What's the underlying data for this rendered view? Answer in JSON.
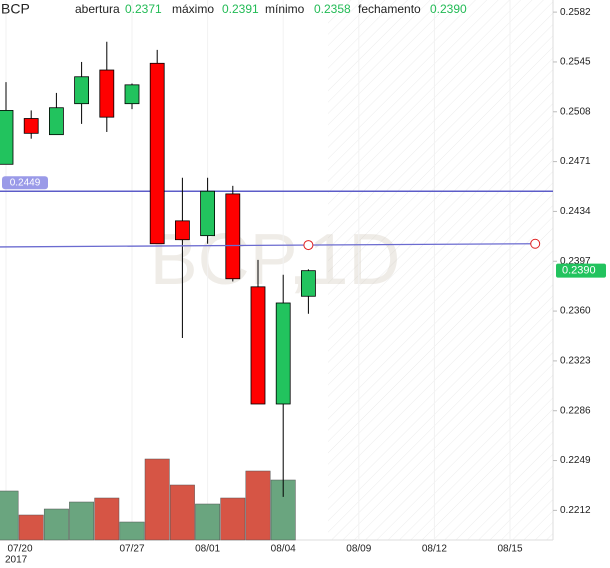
{
  "chart_data": {
    "type": "candlestick",
    "symbol": "BCP",
    "watermark": "BCP,1D",
    "header_fields": [
      {
        "name": "abertura",
        "text": "0.2371"
      },
      {
        "name": "máximo",
        "text": "0.2391"
      },
      {
        "name": "mínimo",
        "text": "0.2358"
      },
      {
        "name": "fechamento",
        "text": "0.2390"
      }
    ],
    "year_label": "2017",
    "categories": [
      "07/20",
      null,
      null,
      null,
      null,
      "07/27",
      null,
      null,
      "08/01",
      null,
      null,
      "08/04",
      null,
      null,
      "08/09",
      null,
      null,
      "08/12",
      null,
      null,
      "08/15",
      null
    ],
    "open": [
      0.2469,
      0.2503,
      0.2491,
      0.2514,
      0.2539,
      0.2514,
      0.2544,
      0.2427,
      0.2416,
      0.2447,
      0.2378,
      0.2291,
      0.2371,
      null,
      null,
      null,
      null,
      null,
      null,
      null,
      null,
      null
    ],
    "high": [
      0.253,
      0.2509,
      0.2522,
      0.2545,
      0.256,
      0.2529,
      0.2554,
      0.2459,
      0.2459,
      0.2453,
      0.2398,
      0.2387,
      0.2391,
      null,
      null,
      null,
      null,
      null,
      null,
      null,
      null,
      null
    ],
    "low": [
      0.2469,
      0.2488,
      0.2491,
      0.2499,
      0.2493,
      0.251,
      0.241,
      0.234,
      0.241,
      0.2382,
      0.2291,
      0.2222,
      0.2358,
      null,
      null,
      null,
      null,
      null,
      null,
      null,
      null,
      null
    ],
    "close": [
      0.2509,
      0.2492,
      0.2511,
      0.2534,
      0.2504,
      0.2528,
      0.241,
      0.2413,
      0.2449,
      0.2384,
      0.2291,
      0.2366,
      0.239,
      null,
      null,
      null,
      null,
      null,
      null,
      null,
      null,
      null
    ],
    "volume": [
      49,
      25,
      31,
      38,
      42,
      18,
      81,
      55,
      36,
      42,
      69,
      60,
      null,
      null,
      null,
      null,
      null,
      null,
      null,
      null,
      null,
      null
    ],
    "volume_lim": [
      0,
      100
    ],
    "up_color": "#22c35e",
    "down_color": "#ff0000",
    "volume_up_color": "#6aa57f",
    "volume_down_color": "#d65545",
    "ylim": [
      0.219,
      0.2591
    ],
    "yticks": [
      0.2582,
      0.2545,
      0.2508,
      0.2471,
      0.2434,
      {
        "value": 0.2397,
        "label": "0.2397"
      },
      {
        "value": 0.236,
        "label": "0.2360"
      },
      0.2323,
      0.2286,
      0.2249,
      0.2212
    ],
    "grid": true,
    "price_line": {
      "value": 0.2449,
      "label": "0.2449",
      "color": "#5c5cc8"
    },
    "last_price": {
      "value": 0.239,
      "label": "0.2390"
    },
    "trend_line": {
      "color": "#6b6bd0",
      "points": [
        {
          "index": 12,
          "value": 0.2409
        },
        {
          "index": 21,
          "value": 0.241
        }
      ]
    }
  }
}
